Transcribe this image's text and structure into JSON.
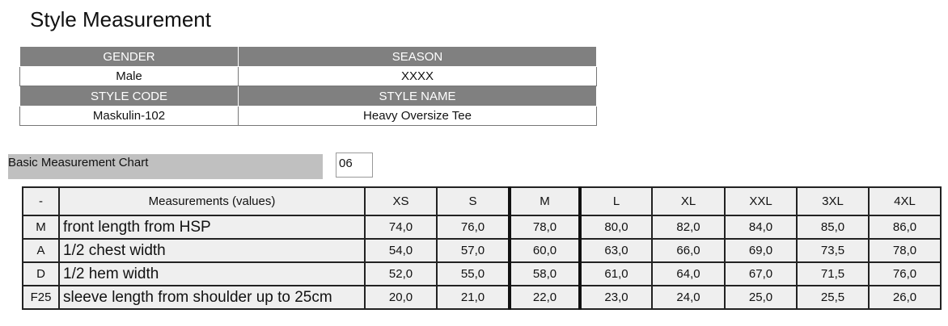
{
  "title": "Style Measurement",
  "info": {
    "gender_label": "GENDER",
    "season_label": "SEASON",
    "gender": "Male",
    "season": "XXXX",
    "style_code_label": "STYLE CODE",
    "style_name_label": "STYLE NAME",
    "style_code": "Maskulin-102",
    "style_name": "Heavy Oversize Tee"
  },
  "chart_label": "Basic Measurement Chart",
  "chart_number": "06",
  "table": {
    "headers": [
      "-",
      "Measurements (values)",
      "XS",
      "S",
      "M",
      "L",
      "XL",
      "XXL",
      "3XL",
      "4XL"
    ],
    "rows": [
      {
        "code": "M",
        "name": "front length from HSP",
        "values": [
          "74,0",
          "76,0",
          "78,0",
          "80,0",
          "82,0",
          "84,0",
          "85,0",
          "86,0"
        ]
      },
      {
        "code": "A",
        "name": "1/2 chest width",
        "values": [
          "54,0",
          "57,0",
          "60,0",
          "63,0",
          "66,0",
          "69,0",
          "73,5",
          "78,0"
        ]
      },
      {
        "code": "D",
        "name": "1/2 hem width",
        "values": [
          "52,0",
          "55,0",
          "58,0",
          "61,0",
          "64,0",
          "67,0",
          "71,5",
          "76,0"
        ]
      },
      {
        "code": "F25",
        "name": "sleeve length from shoulder up to 25cm",
        "values": [
          "20,0",
          "21,0",
          "22,0",
          "23,0",
          "24,0",
          "25,0",
          "25,5",
          "26,0"
        ]
      }
    ]
  }
}
